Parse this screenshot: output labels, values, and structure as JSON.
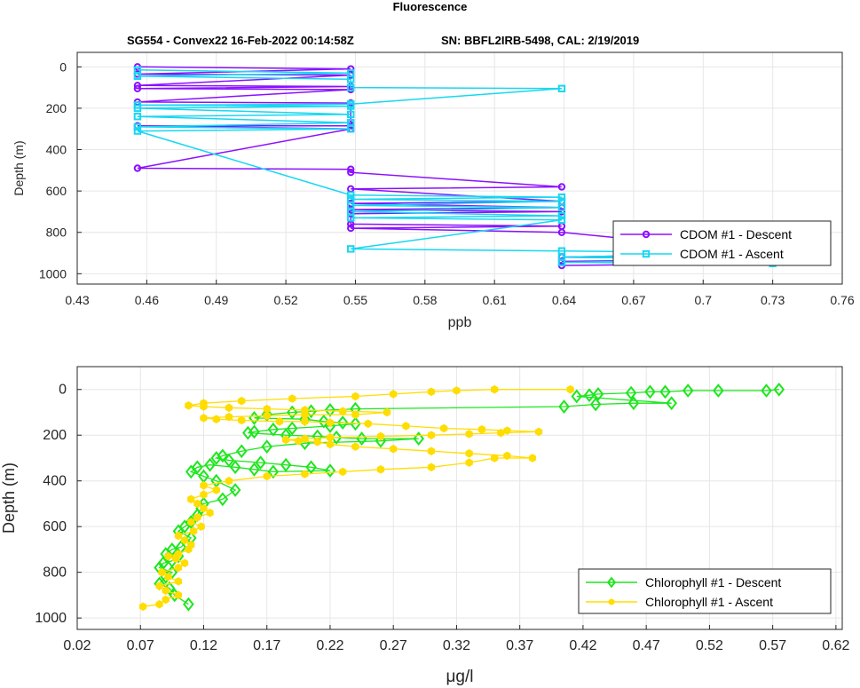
{
  "figure": {
    "title": "Fluorescence",
    "subtitle_left": "SG554 - Convex22 16-Feb-2022 00:14:58Z",
    "subtitle_right": "SN: BBFL2IRB-5498, CAL: 2/19/2019"
  },
  "colors": {
    "cdom_descent": "#8a10ff",
    "cdom_ascent": "#17d7f2",
    "chl_descent": "#1ee61e",
    "chl_ascent": "#ffdd00",
    "grid": "#e6e6e6",
    "axis": "#262626"
  },
  "chart_data": [
    {
      "type": "line",
      "xlabel": "ppb",
      "ylabel": "Depth (m)",
      "xlim": [
        0.43,
        0.76
      ],
      "ylim": [
        1050,
        -70
      ],
      "y_reversed": true,
      "grid": true,
      "legend_position": "bottom-right",
      "x_ticks": [
        "0.43",
        "0.46",
        "0.49",
        "0.52",
        "0.55",
        "0.58",
        "0.61",
        "0.64",
        "0.67",
        "0.7",
        "0.73",
        "0.76"
      ],
      "y_ticks": [
        "0",
        "200",
        "400",
        "600",
        "800",
        "1000"
      ],
      "series": [
        {
          "name": "CDOM #1 - Descent",
          "marker": "o",
          "x": [
            0.456,
            0.548,
            0.456,
            0.548,
            0.456,
            0.548,
            0.456,
            0.548,
            0.456,
            0.548,
            0.548,
            0.548,
            0.456,
            0.548,
            0.456,
            0.548,
            0.548,
            0.639,
            0.548,
            0.639,
            0.548,
            0.639,
            0.548,
            0.639,
            0.548,
            0.548,
            0.639,
            0.548,
            0.639,
            0.73,
            0.639,
            0.73,
            0.639,
            0.73,
            0.639
          ],
          "y": [
            0,
            10,
            35,
            40,
            90,
            95,
            105,
            110,
            170,
            175,
            280,
            285,
            285,
            300,
            490,
            495,
            510,
            580,
            590,
            650,
            660,
            680,
            690,
            700,
            710,
            760,
            770,
            780,
            800,
            900,
            920,
            930,
            940,
            950,
            960
          ]
        },
        {
          "name": "CDOM #1 - Ascent",
          "marker": "s",
          "x": [
            0.73,
            0.639,
            0.73,
            0.639,
            0.73,
            0.639,
            0.548,
            0.639,
            0.548,
            0.639,
            0.548,
            0.639,
            0.548,
            0.639,
            0.548,
            0.639,
            0.548,
            0.456,
            0.548,
            0.456,
            0.548,
            0.456,
            0.548,
            0.456,
            0.548,
            0.456,
            0.548,
            0.639,
            0.548,
            0.548,
            0.456,
            0.548,
            0.456
          ],
          "y": [
            950,
            945,
            930,
            920,
            900,
            890,
            880,
            740,
            730,
            720,
            700,
            680,
            670,
            650,
            640,
            630,
            620,
            310,
            300,
            290,
            270,
            240,
            230,
            200,
            190,
            185,
            180,
            105,
            100,
            60,
            45,
            30,
            15
          ]
        }
      ]
    },
    {
      "type": "line",
      "xlabel": "μg/l",
      "ylabel": "Depth (m)",
      "xlim": [
        0.02,
        0.625
      ],
      "ylim": [
        1050,
        -100
      ],
      "y_reversed": true,
      "grid": true,
      "legend_position": "bottom-right",
      "x_ticks": [
        "0.02",
        "0.07",
        "0.12",
        "0.17",
        "0.22",
        "0.27",
        "0.32",
        "0.37",
        "0.42",
        "0.47",
        "0.52",
        "0.57",
        "0.62"
      ],
      "y_ticks": [
        "0",
        "200",
        "400",
        "600",
        "800",
        "1000"
      ],
      "series": [
        {
          "name": "Chlorophyll #1 - Descent",
          "marker": "d",
          "x": [
            0.575,
            0.565,
            0.527,
            0.503,
            0.485,
            0.473,
            0.458,
            0.432,
            0.425,
            0.415,
            0.49,
            0.46,
            0.43,
            0.405,
            0.24,
            0.22,
            0.205,
            0.19,
            0.17,
            0.16,
            0.2,
            0.215,
            0.23,
            0.24,
            0.22,
            0.19,
            0.175,
            0.16,
            0.155,
            0.185,
            0.21,
            0.225,
            0.245,
            0.29,
            0.26,
            0.2,
            0.17,
            0.15,
            0.135,
            0.13,
            0.14,
            0.165,
            0.185,
            0.205,
            0.22,
            0.175,
            0.16,
            0.145,
            0.125,
            0.115,
            0.11,
            0.12,
            0.13,
            0.145,
            0.135,
            0.12,
            0.118,
            0.115,
            0.11,
            0.105,
            0.1,
            0.11,
            0.102,
            0.095,
            0.09,
            0.1,
            0.095,
            0.088,
            0.085,
            0.095,
            0.09,
            0.085,
            0.093,
            0.097,
            0.108
          ],
          "y": [
            0,
            5,
            5,
            5,
            10,
            10,
            15,
            20,
            25,
            30,
            60,
            60,
            65,
            75,
            85,
            90,
            95,
            100,
            110,
            125,
            130,
            140,
            145,
            150,
            160,
            170,
            175,
            185,
            190,
            200,
            205,
            210,
            215,
            215,
            225,
            235,
            250,
            270,
            290,
            300,
            310,
            320,
            330,
            340,
            355,
            360,
            350,
            340,
            330,
            340,
            360,
            380,
            400,
            440,
            480,
            500,
            520,
            550,
            580,
            600,
            620,
            650,
            690,
            700,
            720,
            730,
            750,
            760,
            780,
            800,
            820,
            850,
            870,
            900,
            940
          ]
        },
        {
          "name": "Chlorophyll #1 - Ascent",
          "marker": "h",
          "x": [
            0.072,
            0.085,
            0.09,
            0.1,
            0.09,
            0.085,
            0.1,
            0.092,
            0.087,
            0.1,
            0.105,
            0.098,
            0.092,
            0.1,
            0.108,
            0.11,
            0.105,
            0.1,
            0.112,
            0.118,
            0.11,
            0.115,
            0.125,
            0.12,
            0.115,
            0.11,
            0.12,
            0.13,
            0.12,
            0.14,
            0.17,
            0.2,
            0.23,
            0.26,
            0.3,
            0.33,
            0.35,
            0.38,
            0.36,
            0.33,
            0.3,
            0.27,
            0.24,
            0.22,
            0.21,
            0.195,
            0.185,
            0.2,
            0.22,
            0.26,
            0.3,
            0.33,
            0.355,
            0.385,
            0.36,
            0.34,
            0.31,
            0.28,
            0.25,
            0.22,
            0.2,
            0.18,
            0.15,
            0.13,
            0.12,
            0.14,
            0.17,
            0.2,
            0.24,
            0.265,
            0.23,
            0.2,
            0.17,
            0.14,
            0.12,
            0.108,
            0.12,
            0.15,
            0.19,
            0.24,
            0.27,
            0.3,
            0.32,
            0.35,
            0.41
          ],
          "y": [
            950,
            940,
            920,
            900,
            880,
            860,
            840,
            820,
            800,
            780,
            760,
            740,
            730,
            720,
            700,
            680,
            660,
            640,
            620,
            600,
            580,
            560,
            540,
            520,
            500,
            480,
            460,
            440,
            420,
            400,
            380,
            370,
            360,
            350,
            340,
            320,
            300,
            300,
            290,
            280,
            270,
            260,
            250,
            240,
            230,
            225,
            220,
            215,
            210,
            205,
            200,
            195,
            190,
            185,
            180,
            175,
            170,
            160,
            150,
            145,
            140,
            140,
            135,
            130,
            125,
            120,
            115,
            110,
            110,
            100,
            95,
            90,
            85,
            80,
            75,
            70,
            60,
            50,
            40,
            30,
            20,
            10,
            5,
            0,
            0
          ]
        }
      ]
    }
  ]
}
